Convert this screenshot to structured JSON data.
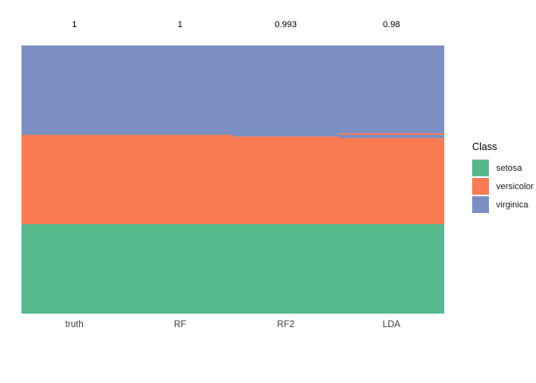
{
  "chart_data": {
    "type": "bar",
    "subtype": "stacked-class-membership",
    "title": "",
    "xlabel": "",
    "ylabel": "",
    "grid": "off",
    "categories": [
      "truth",
      "RF",
      "RF2",
      "LDA"
    ],
    "accuracy_labels": [
      "1",
      "1",
      "0.993",
      "0.98"
    ],
    "total_per_column": 150,
    "classes": [
      {
        "name": "setosa",
        "color": "#55B98C"
      },
      {
        "name": "versicolor",
        "color": "#F87B54"
      },
      {
        "name": "virginica",
        "color": "#7D90C4"
      }
    ],
    "columns": [
      {
        "label": "truth",
        "accuracy": "1",
        "segments": [
          {
            "class": "virginica",
            "count": 50
          },
          {
            "class": "versicolor",
            "count": 50
          },
          {
            "class": "setosa",
            "count": 50
          }
        ]
      },
      {
        "label": "RF",
        "accuracy": "1",
        "segments": [
          {
            "class": "virginica",
            "count": 50
          },
          {
            "class": "versicolor",
            "count": 50
          },
          {
            "class": "setosa",
            "count": 50
          }
        ]
      },
      {
        "label": "RF2",
        "accuracy": "0.993",
        "segments": [
          {
            "class": "virginica",
            "count": 51
          },
          {
            "class": "versicolor",
            "count": 49
          },
          {
            "class": "setosa",
            "count": 50
          }
        ]
      },
      {
        "label": "LDA",
        "accuracy": "0.98",
        "segments": [
          {
            "class": "virginica",
            "count": 49
          },
          {
            "class": "versicolor",
            "count": 1
          },
          {
            "class": "virginica",
            "count": 2
          },
          {
            "class": "versicolor",
            "count": 48
          },
          {
            "class": "setosa",
            "count": 50
          }
        ]
      }
    ],
    "legend": {
      "title": "Class",
      "position": "right",
      "entries": [
        "setosa",
        "versicolor",
        "virginica"
      ]
    }
  }
}
